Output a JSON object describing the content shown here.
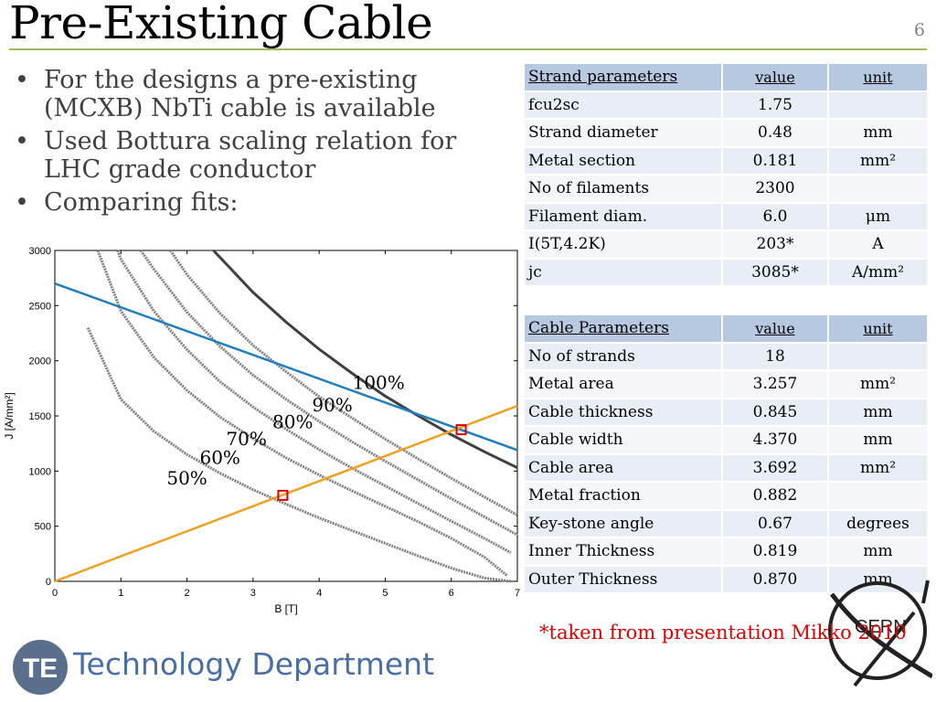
{
  "slide": {
    "title": "Pre-Existing Cable",
    "page_number": "6",
    "bullets": [
      "For the designs a pre-existing (MCXB) NbTi cable is available",
      "Used Bottura scaling relation for LHC grade conductor",
      "Comparing fits:"
    ],
    "note": "*taken from presentation Mikko 2010",
    "department": "Technology Department",
    "te_logo_text": "TE",
    "cern_logo_text": "CERN"
  },
  "strand_table": {
    "headers": [
      "Strand parameters",
      "value",
      "unit"
    ],
    "rows": [
      [
        "fcu2sc",
        "1.75",
        ""
      ],
      [
        "Strand diameter",
        "0.48",
        "mm"
      ],
      [
        "Metal section",
        "0.181",
        "mm²"
      ],
      [
        "No of filaments",
        "2300",
        ""
      ],
      [
        "Filament diam.",
        "6.0",
        "μm"
      ],
      [
        "I(5T,4.2K)",
        "203*",
        "A"
      ],
      [
        "jc",
        "3085*",
        "A/mm²"
      ]
    ]
  },
  "cable_table": {
    "headers": [
      "Cable Parameters",
      "value",
      "unit"
    ],
    "rows": [
      [
        "No of strands",
        "18",
        ""
      ],
      [
        "Metal area",
        "3.257",
        "mm²"
      ],
      [
        "Cable thickness",
        "0.845",
        "mm"
      ],
      [
        "Cable width",
        "4.370",
        "mm"
      ],
      [
        "Cable area",
        "3.692",
        "mm²"
      ],
      [
        "Metal fraction",
        "0.882",
        ""
      ],
      [
        "Key-stone angle",
        "0.67",
        "degrees"
      ],
      [
        "Inner Thickness",
        "0.819",
        "mm"
      ],
      [
        "Outer Thickness",
        "0.870",
        "mm"
      ]
    ]
  },
  "chart_data": {
    "type": "line",
    "xlabel": "B [T]",
    "ylabel": "J [A/mm²]",
    "xlim": [
      0,
      7
    ],
    "ylim": [
      0,
      3000
    ],
    "xticks": [
      "0",
      "1",
      "2",
      "3",
      "4",
      "5",
      "6",
      "7"
    ],
    "yticks": [
      "0",
      "500",
      "1000",
      "1500",
      "2000",
      "2500",
      "3000"
    ],
    "grid": false,
    "colors": {
      "load_line": "#f0a020",
      "fit_line": "#1f7fc0",
      "jc_100": "#404040",
      "jc_curves": "#808080",
      "marker": "#e00000"
    },
    "series": [
      {
        "name": "100%",
        "x": [
          2.4,
          3.0,
          3.5,
          4.0,
          4.5,
          5.0,
          5.5,
          6.0,
          6.5,
          7.0
        ],
        "y": [
          3000,
          2620,
          2350,
          2105,
          1885,
          1680,
          1500,
          1330,
          1175,
          1030
        ]
      },
      {
        "name": "90%",
        "x": [
          1.75,
          2.0,
          2.5,
          3.0,
          3.5,
          4.0,
          4.5,
          5.0,
          5.5,
          6.0,
          6.5,
          7.0
        ],
        "y": [
          3000,
          2780,
          2430,
          2140,
          1900,
          1675,
          1480,
          1290,
          1110,
          935,
          765,
          600
        ]
      },
      {
        "name": "80%",
        "x": [
          1.3,
          1.5,
          2.0,
          2.5,
          3.0,
          3.5,
          4.0,
          4.5,
          5.0,
          5.5,
          6.0,
          6.5,
          7.0
        ],
        "y": [
          3000,
          2830,
          2440,
          2130,
          1870,
          1650,
          1450,
          1265,
          1090,
          920,
          750,
          585,
          420
        ]
      },
      {
        "name": "70%",
        "x": [
          0.95,
          1.0,
          1.5,
          2.0,
          2.5,
          3.0,
          3.5,
          4.0,
          4.5,
          5.0,
          5.5,
          6.0,
          6.5,
          6.9
        ],
        "y": [
          3000,
          2920,
          2450,
          2100,
          1810,
          1580,
          1380,
          1195,
          1025,
          865,
          705,
          545,
          390,
          260
        ]
      },
      {
        "name": "60%",
        "x": [
          0.65,
          1.0,
          1.5,
          2.0,
          2.5,
          3.0,
          3.5,
          4.0,
          4.5,
          5.0,
          5.5,
          6.0,
          6.5,
          6.85
        ],
        "y": [
          3000,
          2450,
          2030,
          1730,
          1490,
          1295,
          1120,
          965,
          820,
          680,
          540,
          390,
          220,
          50
        ]
      },
      {
        "name": "50%",
        "x": [
          0.5,
          1.0,
          1.5,
          2.0,
          2.5,
          3.0,
          3.5,
          4.0,
          4.5,
          5.0,
          5.5,
          6.0,
          6.5,
          6.9
        ],
        "y": [
          2300,
          1650,
          1360,
          1150,
          980,
          830,
          700,
          575,
          460,
          345,
          230,
          120,
          30,
          0
        ]
      },
      {
        "name": "Bottura fit",
        "x": [
          0,
          7
        ],
        "y": [
          2700,
          1190
        ]
      },
      {
        "name": "load line",
        "x": [
          0,
          7
        ],
        "y": [
          0,
          1590
        ]
      }
    ],
    "markers": [
      {
        "x": 3.45,
        "y": 780
      },
      {
        "x": 6.15,
        "y": 1375
      }
    ],
    "curve_labels": [
      "100%",
      "90%",
      "80%",
      "70%",
      "60%",
      "50%"
    ]
  }
}
